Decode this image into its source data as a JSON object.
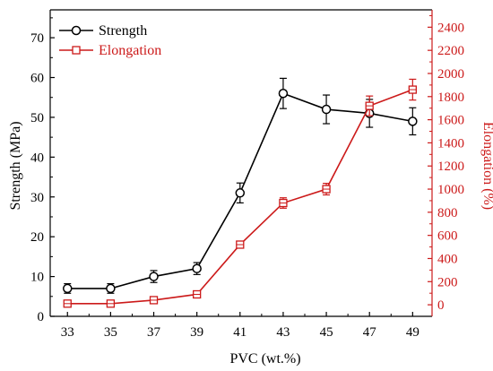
{
  "chart_data": {
    "type": "line",
    "x": [
      33,
      35,
      37,
      39,
      41,
      43,
      45,
      47,
      49
    ],
    "xlabel": "PVC (wt.%)",
    "x_tick_labels": [
      "33",
      "35",
      "37",
      "39",
      "41",
      "43",
      "45",
      "47",
      "49"
    ],
    "y_left": {
      "label": "Strength (MPa)",
      "ylim": [
        0,
        77
      ],
      "ticks": [
        0,
        10,
        20,
        30,
        40,
        50,
        60,
        70
      ],
      "tick_labels": [
        "0",
        "10",
        "20",
        "30",
        "40",
        "50",
        "60",
        "70"
      ],
      "color": "#000000"
    },
    "y_right": {
      "label": "Elongation (%)",
      "ylim": [
        -100,
        2550
      ],
      "ticks": [
        0,
        200,
        400,
        600,
        800,
        1000,
        1200,
        1400,
        1600,
        1800,
        2000,
        2200,
        2400
      ],
      "tick_labels": [
        "0",
        "200",
        "400",
        "600",
        "800",
        "1000",
        "1200",
        "1400",
        "1600",
        "1800",
        "2000",
        "2200",
        "2400"
      ],
      "color": "#cc1a1a"
    },
    "series": [
      {
        "name": "Strength",
        "axis": "left",
        "marker": "circle",
        "color": "#000000",
        "values": [
          7,
          7,
          10,
          12,
          31,
          56,
          52,
          51,
          49
        ],
        "errors": [
          1.2,
          1.2,
          1.5,
          1.5,
          2.5,
          3.8,
          3.6,
          3.5,
          3.4
        ]
      },
      {
        "name": "Elongation",
        "axis": "right",
        "marker": "square",
        "color": "#cc1a1a",
        "values": [
          10,
          10,
          40,
          90,
          520,
          880,
          1000,
          1720,
          1860
        ],
        "errors": [
          15,
          15,
          20,
          25,
          30,
          45,
          50,
          85,
          90
        ]
      }
    ],
    "legend": {
      "position": "top-left",
      "entries": [
        "Strength",
        "Elongation"
      ]
    },
    "grid": false
  }
}
